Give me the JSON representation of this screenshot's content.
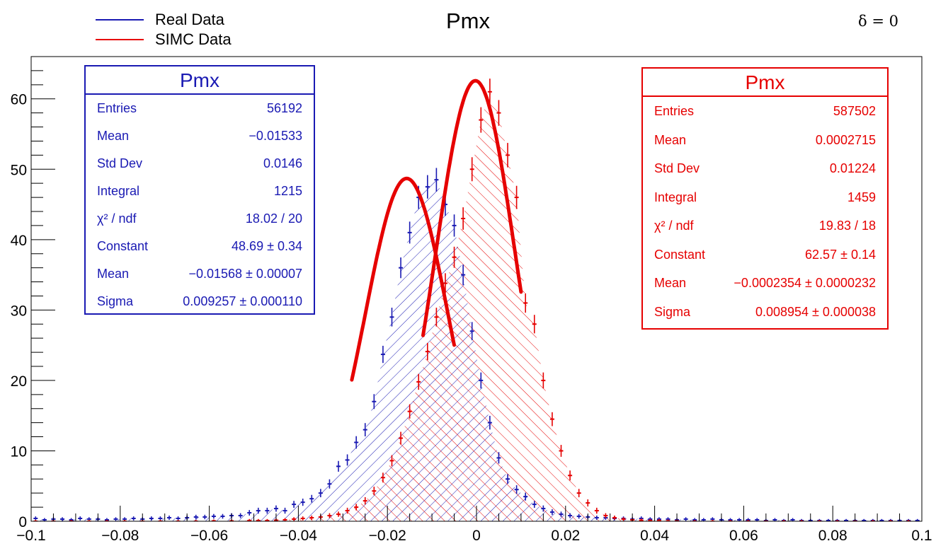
{
  "chart_data": {
    "type": "histogram",
    "title": "Pmx",
    "annotation": "δ = 0",
    "xlim": [
      -0.1,
      0.1
    ],
    "ylim": [
      0,
      66
    ],
    "x_ticks": [
      "−0.1",
      "−0.08",
      "−0.06",
      "−0.04",
      "−0.02",
      "0",
      "0.02",
      "0.04",
      "0.06",
      "0.08",
      "0.1"
    ],
    "y_ticks": [
      "0",
      "10",
      "20",
      "30",
      "40",
      "50",
      "60"
    ],
    "legend": [
      {
        "label": "Real Data",
        "color": "#1a1ab3"
      },
      {
        "label": "SIMC Data",
        "color": "#e60000"
      }
    ],
    "series": [
      {
        "name": "Real Data",
        "color": "#1a1ab3",
        "hatch": "forward",
        "fit": {
          "constant": 48.69,
          "mean": -0.01568,
          "sigma": 0.009257,
          "range": [
            -0.028,
            -0.005
          ]
        },
        "points": [
          [
            -0.099,
            0.4
          ],
          [
            -0.097,
            0.2
          ],
          [
            -0.095,
            0.3
          ],
          [
            -0.093,
            0.3
          ],
          [
            -0.091,
            0.2
          ],
          [
            -0.089,
            0.4
          ],
          [
            -0.087,
            0.3
          ],
          [
            -0.085,
            0.3
          ],
          [
            -0.083,
            0.2
          ],
          [
            -0.081,
            0.3
          ],
          [
            -0.079,
            0.3
          ],
          [
            -0.077,
            0.4
          ],
          [
            -0.075,
            0.3
          ],
          [
            -0.073,
            0.4
          ],
          [
            -0.071,
            0.4
          ],
          [
            -0.069,
            0.5
          ],
          [
            -0.067,
            0.4
          ],
          [
            -0.065,
            0.5
          ],
          [
            -0.063,
            0.6
          ],
          [
            -0.061,
            0.6
          ],
          [
            -0.059,
            0.7
          ],
          [
            -0.057,
            0.7
          ],
          [
            -0.055,
            0.8
          ],
          [
            -0.053,
            0.8
          ],
          [
            -0.051,
            1.2
          ],
          [
            -0.049,
            1.5
          ],
          [
            -0.047,
            1.5
          ],
          [
            -0.045,
            1.8
          ],
          [
            -0.043,
            1.5
          ],
          [
            -0.041,
            2.4
          ],
          [
            -0.039,
            2.7
          ],
          [
            -0.037,
            3.2
          ],
          [
            -0.035,
            4.0
          ],
          [
            -0.033,
            5.3
          ],
          [
            -0.031,
            7.8
          ],
          [
            -0.029,
            8.7
          ],
          [
            -0.027,
            11.2
          ],
          [
            -0.025,
            13.0
          ],
          [
            -0.023,
            17.0
          ],
          [
            -0.021,
            23.7
          ],
          [
            -0.019,
            29.0
          ],
          [
            -0.017,
            36.0
          ],
          [
            -0.015,
            41.0
          ],
          [
            -0.013,
            46.0
          ],
          [
            -0.011,
            47.5
          ],
          [
            -0.009,
            48.5
          ],
          [
            -0.007,
            45.0
          ],
          [
            -0.005,
            42.0
          ],
          [
            -0.003,
            35.0
          ],
          [
            -0.001,
            27.0
          ],
          [
            0.001,
            20.0
          ],
          [
            0.003,
            14.0
          ],
          [
            0.005,
            9.0
          ],
          [
            0.007,
            6.0
          ],
          [
            0.009,
            4.5
          ],
          [
            0.011,
            3.5
          ],
          [
            0.013,
            2.4
          ],
          [
            0.015,
            1.8
          ],
          [
            0.017,
            1.3
          ],
          [
            0.019,
            1.0
          ],
          [
            0.021,
            0.8
          ],
          [
            0.023,
            0.7
          ],
          [
            0.025,
            0.6
          ],
          [
            0.027,
            0.5
          ],
          [
            0.029,
            0.5
          ],
          [
            0.031,
            0.4
          ],
          [
            0.033,
            0.4
          ],
          [
            0.035,
            0.3
          ],
          [
            0.037,
            0.4
          ],
          [
            0.039,
            0.3
          ],
          [
            0.041,
            0.3
          ],
          [
            0.043,
            0.3
          ],
          [
            0.045,
            0.2
          ],
          [
            0.047,
            0.3
          ],
          [
            0.049,
            0.2
          ],
          [
            0.051,
            0.2
          ],
          [
            0.053,
            0.3
          ],
          [
            0.055,
            0.2
          ],
          [
            0.057,
            0.2
          ],
          [
            0.059,
            0.2
          ],
          [
            0.061,
            0.2
          ],
          [
            0.063,
            0.2
          ],
          [
            0.065,
            0.1
          ],
          [
            0.067,
            0.2
          ],
          [
            0.069,
            0.1
          ],
          [
            0.071,
            0.2
          ],
          [
            0.073,
            0.1
          ],
          [
            0.075,
            0.1
          ],
          [
            0.077,
            0.1
          ],
          [
            0.079,
            0.1
          ],
          [
            0.081,
            0.1
          ],
          [
            0.083,
            0.1
          ],
          [
            0.085,
            0.1
          ],
          [
            0.087,
            0.1
          ],
          [
            0.089,
            0.1
          ],
          [
            0.091,
            0.1
          ],
          [
            0.093,
            0.1
          ],
          [
            0.095,
            0.1
          ],
          [
            0.097,
            0.1
          ],
          [
            0.099,
            0.1
          ]
        ]
      },
      {
        "name": "SIMC Data",
        "color": "#e60000",
        "hatch": "backward",
        "fit": {
          "constant": 62.57,
          "mean": -0.0002354,
          "sigma": 0.008954,
          "range": [
            -0.012,
            0.01
          ]
        },
        "points": [
          [
            -0.099,
            0.0
          ],
          [
            -0.095,
            0.0
          ],
          [
            -0.091,
            0.0
          ],
          [
            -0.087,
            0.0
          ],
          [
            -0.083,
            0.0
          ],
          [
            -0.079,
            0.0
          ],
          [
            -0.075,
            0.0
          ],
          [
            -0.071,
            0.0
          ],
          [
            -0.067,
            0.0
          ],
          [
            -0.063,
            0.0
          ],
          [
            -0.059,
            0.05
          ],
          [
            -0.055,
            0.05
          ],
          [
            -0.051,
            0.1
          ],
          [
            -0.049,
            0.1
          ],
          [
            -0.047,
            0.1
          ],
          [
            -0.045,
            0.15
          ],
          [
            -0.043,
            0.2
          ],
          [
            -0.041,
            0.3
          ],
          [
            -0.039,
            0.4
          ],
          [
            -0.037,
            0.5
          ],
          [
            -0.035,
            0.6
          ],
          [
            -0.033,
            0.8
          ],
          [
            -0.031,
            1.0
          ],
          [
            -0.029,
            1.5
          ],
          [
            -0.027,
            2.0
          ],
          [
            -0.025,
            2.9
          ],
          [
            -0.023,
            4.3
          ],
          [
            -0.021,
            6.2
          ],
          [
            -0.019,
            8.6
          ],
          [
            -0.017,
            11.8
          ],
          [
            -0.015,
            15.6
          ],
          [
            -0.013,
            19.8
          ],
          [
            -0.011,
            24.1
          ],
          [
            -0.009,
            29.0
          ],
          [
            -0.007,
            33.8
          ],
          [
            -0.005,
            37.5
          ],
          [
            -0.003,
            43.0
          ],
          [
            -0.001,
            50.0
          ],
          [
            0.001,
            57.0
          ],
          [
            0.003,
            61.0
          ],
          [
            0.005,
            58.0
          ],
          [
            0.007,
            52.0
          ],
          [
            0.009,
            46.0
          ],
          [
            0.011,
            31.0
          ],
          [
            0.013,
            28.0
          ],
          [
            0.015,
            20.0
          ],
          [
            0.017,
            14.5
          ],
          [
            0.019,
            10.0
          ],
          [
            0.021,
            6.5
          ],
          [
            0.023,
            4.0
          ],
          [
            0.025,
            2.6
          ],
          [
            0.027,
            1.5
          ],
          [
            0.029,
            0.8
          ],
          [
            0.031,
            0.5
          ],
          [
            0.033,
            0.3
          ],
          [
            0.035,
            0.2
          ],
          [
            0.037,
            0.15
          ],
          [
            0.039,
            0.1
          ],
          [
            0.041,
            0.1
          ],
          [
            0.043,
            0.05
          ],
          [
            0.045,
            0.05
          ],
          [
            0.049,
            0.0
          ],
          [
            0.053,
            0.0
          ],
          [
            0.057,
            0.0
          ],
          [
            0.061,
            0.0
          ],
          [
            0.065,
            0.0
          ],
          [
            0.069,
            0.0
          ],
          [
            0.073,
            0.0
          ],
          [
            0.077,
            0.0
          ],
          [
            0.081,
            0.0
          ],
          [
            0.085,
            0.0
          ],
          [
            0.089,
            0.0
          ],
          [
            0.093,
            0.0
          ],
          [
            0.097,
            0.0
          ]
        ]
      }
    ]
  },
  "stats_real": {
    "title": "Pmx",
    "rows": [
      {
        "label": "Entries",
        "value": "56192"
      },
      {
        "label": "Mean",
        "value": "−0.01533"
      },
      {
        "label": "Std Dev",
        "value": "0.0146"
      },
      {
        "label": "Integral",
        "value": "1215"
      },
      {
        "label": "χ² / ndf",
        "value": "18.02 / 20"
      },
      {
        "label": "Constant",
        "value": "48.69 ± 0.34"
      },
      {
        "label": "Mean",
        "value": "−0.01568 ± 0.00007"
      },
      {
        "label": "Sigma",
        "value": "0.009257 ± 0.000110"
      }
    ]
  },
  "stats_simc": {
    "title": "Pmx",
    "rows": [
      {
        "label": "Entries",
        "value": "587502"
      },
      {
        "label": "Mean",
        "value": "0.0002715"
      },
      {
        "label": "Std Dev",
        "value": "0.01224"
      },
      {
        "label": "Integral",
        "value": "1459"
      },
      {
        "label": "χ² / ndf",
        "value": "19.83 / 18"
      },
      {
        "label": "Constant",
        "value": "62.57 ± 0.14"
      },
      {
        "label": "Mean",
        "value": "−0.0002354 ± 0.0000232"
      },
      {
        "label": "Sigma",
        "value": "0.008954 ± 0.000038"
      }
    ]
  }
}
